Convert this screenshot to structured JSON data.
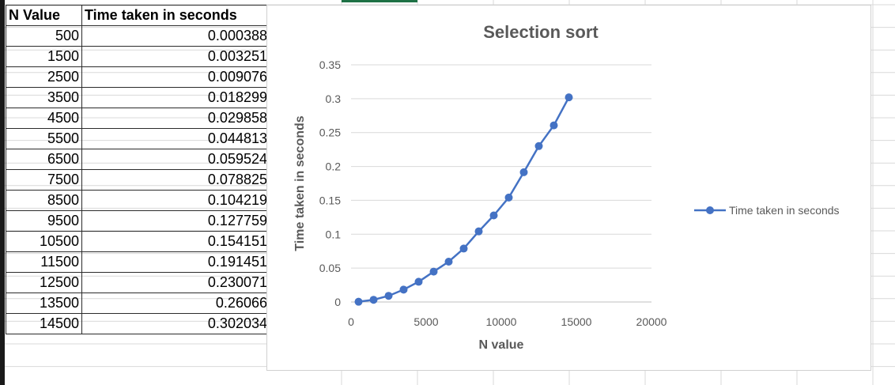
{
  "table": {
    "headers": [
      "N Value",
      "Time taken in seconds"
    ],
    "rows": [
      [
        "500",
        "0.000388"
      ],
      [
        "1500",
        "0.003251"
      ],
      [
        "2500",
        "0.009076"
      ],
      [
        "3500",
        "0.018299"
      ],
      [
        "4500",
        "0.029858"
      ],
      [
        "5500",
        "0.044813"
      ],
      [
        "6500",
        "0.059524"
      ],
      [
        "7500",
        "0.078825"
      ],
      [
        "8500",
        "0.104219"
      ],
      [
        "9500",
        "0.127759"
      ],
      [
        "10500",
        "0.154151"
      ],
      [
        "11500",
        "0.191451"
      ],
      [
        "12500",
        "0.230071"
      ],
      [
        "13500",
        "0.26066"
      ],
      [
        "14500",
        "0.302034"
      ]
    ]
  },
  "chart_data": {
    "type": "line",
    "title": "Selection sort",
    "xlabel": "N value",
    "ylabel": "Time taken in seconds",
    "xlim": [
      0,
      20000
    ],
    "ylim": [
      0,
      0.35
    ],
    "x_ticks": [
      "0",
      "5000",
      "10000",
      "15000",
      "20000"
    ],
    "y_ticks": [
      "0",
      "0.05",
      "0.1",
      "0.15",
      "0.2",
      "0.25",
      "0.3",
      "0.35"
    ],
    "grid": "horizontal",
    "legend": "right",
    "series": [
      {
        "name": "Time taken in seconds",
        "color": "#4472c4",
        "marker": "circle",
        "x": [
          500,
          1500,
          2500,
          3500,
          4500,
          5500,
          6500,
          7500,
          8500,
          9500,
          10500,
          11500,
          12500,
          13500,
          14500
        ],
        "values": [
          0.000388,
          0.003251,
          0.009076,
          0.018299,
          0.029858,
          0.044813,
          0.059524,
          0.078825,
          0.104219,
          0.127759,
          0.154151,
          0.191451,
          0.230071,
          0.26066,
          0.302034
        ]
      }
    ]
  }
}
